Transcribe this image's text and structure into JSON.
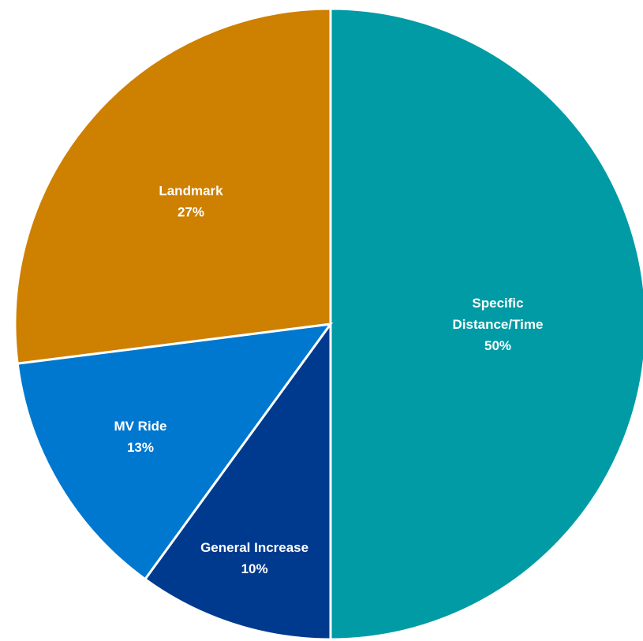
{
  "chart_data": {
    "type": "pie",
    "start": "12 o'clock",
    "direction": "clockwise",
    "slices": [
      {
        "category": "Specific Distance/Time",
        "label_lines": [
          "Specific",
          "Distance/Time"
        ],
        "percent_label": "50%",
        "value": 50,
        "color": "#009BA5"
      },
      {
        "category": "General Increase",
        "label_lines": [
          "General Increase"
        ],
        "percent_label": "10%",
        "value": 10,
        "color": "#003A8F"
      },
      {
        "category": "MV Ride",
        "label_lines": [
          "MV Ride"
        ],
        "percent_label": "13%",
        "value": 13,
        "color": "#0078CF"
      },
      {
        "category": "Landmark",
        "label_lines": [
          "Landmark"
        ],
        "percent_label": "27%",
        "value": 27,
        "color": "#CE8000"
      }
    ]
  }
}
